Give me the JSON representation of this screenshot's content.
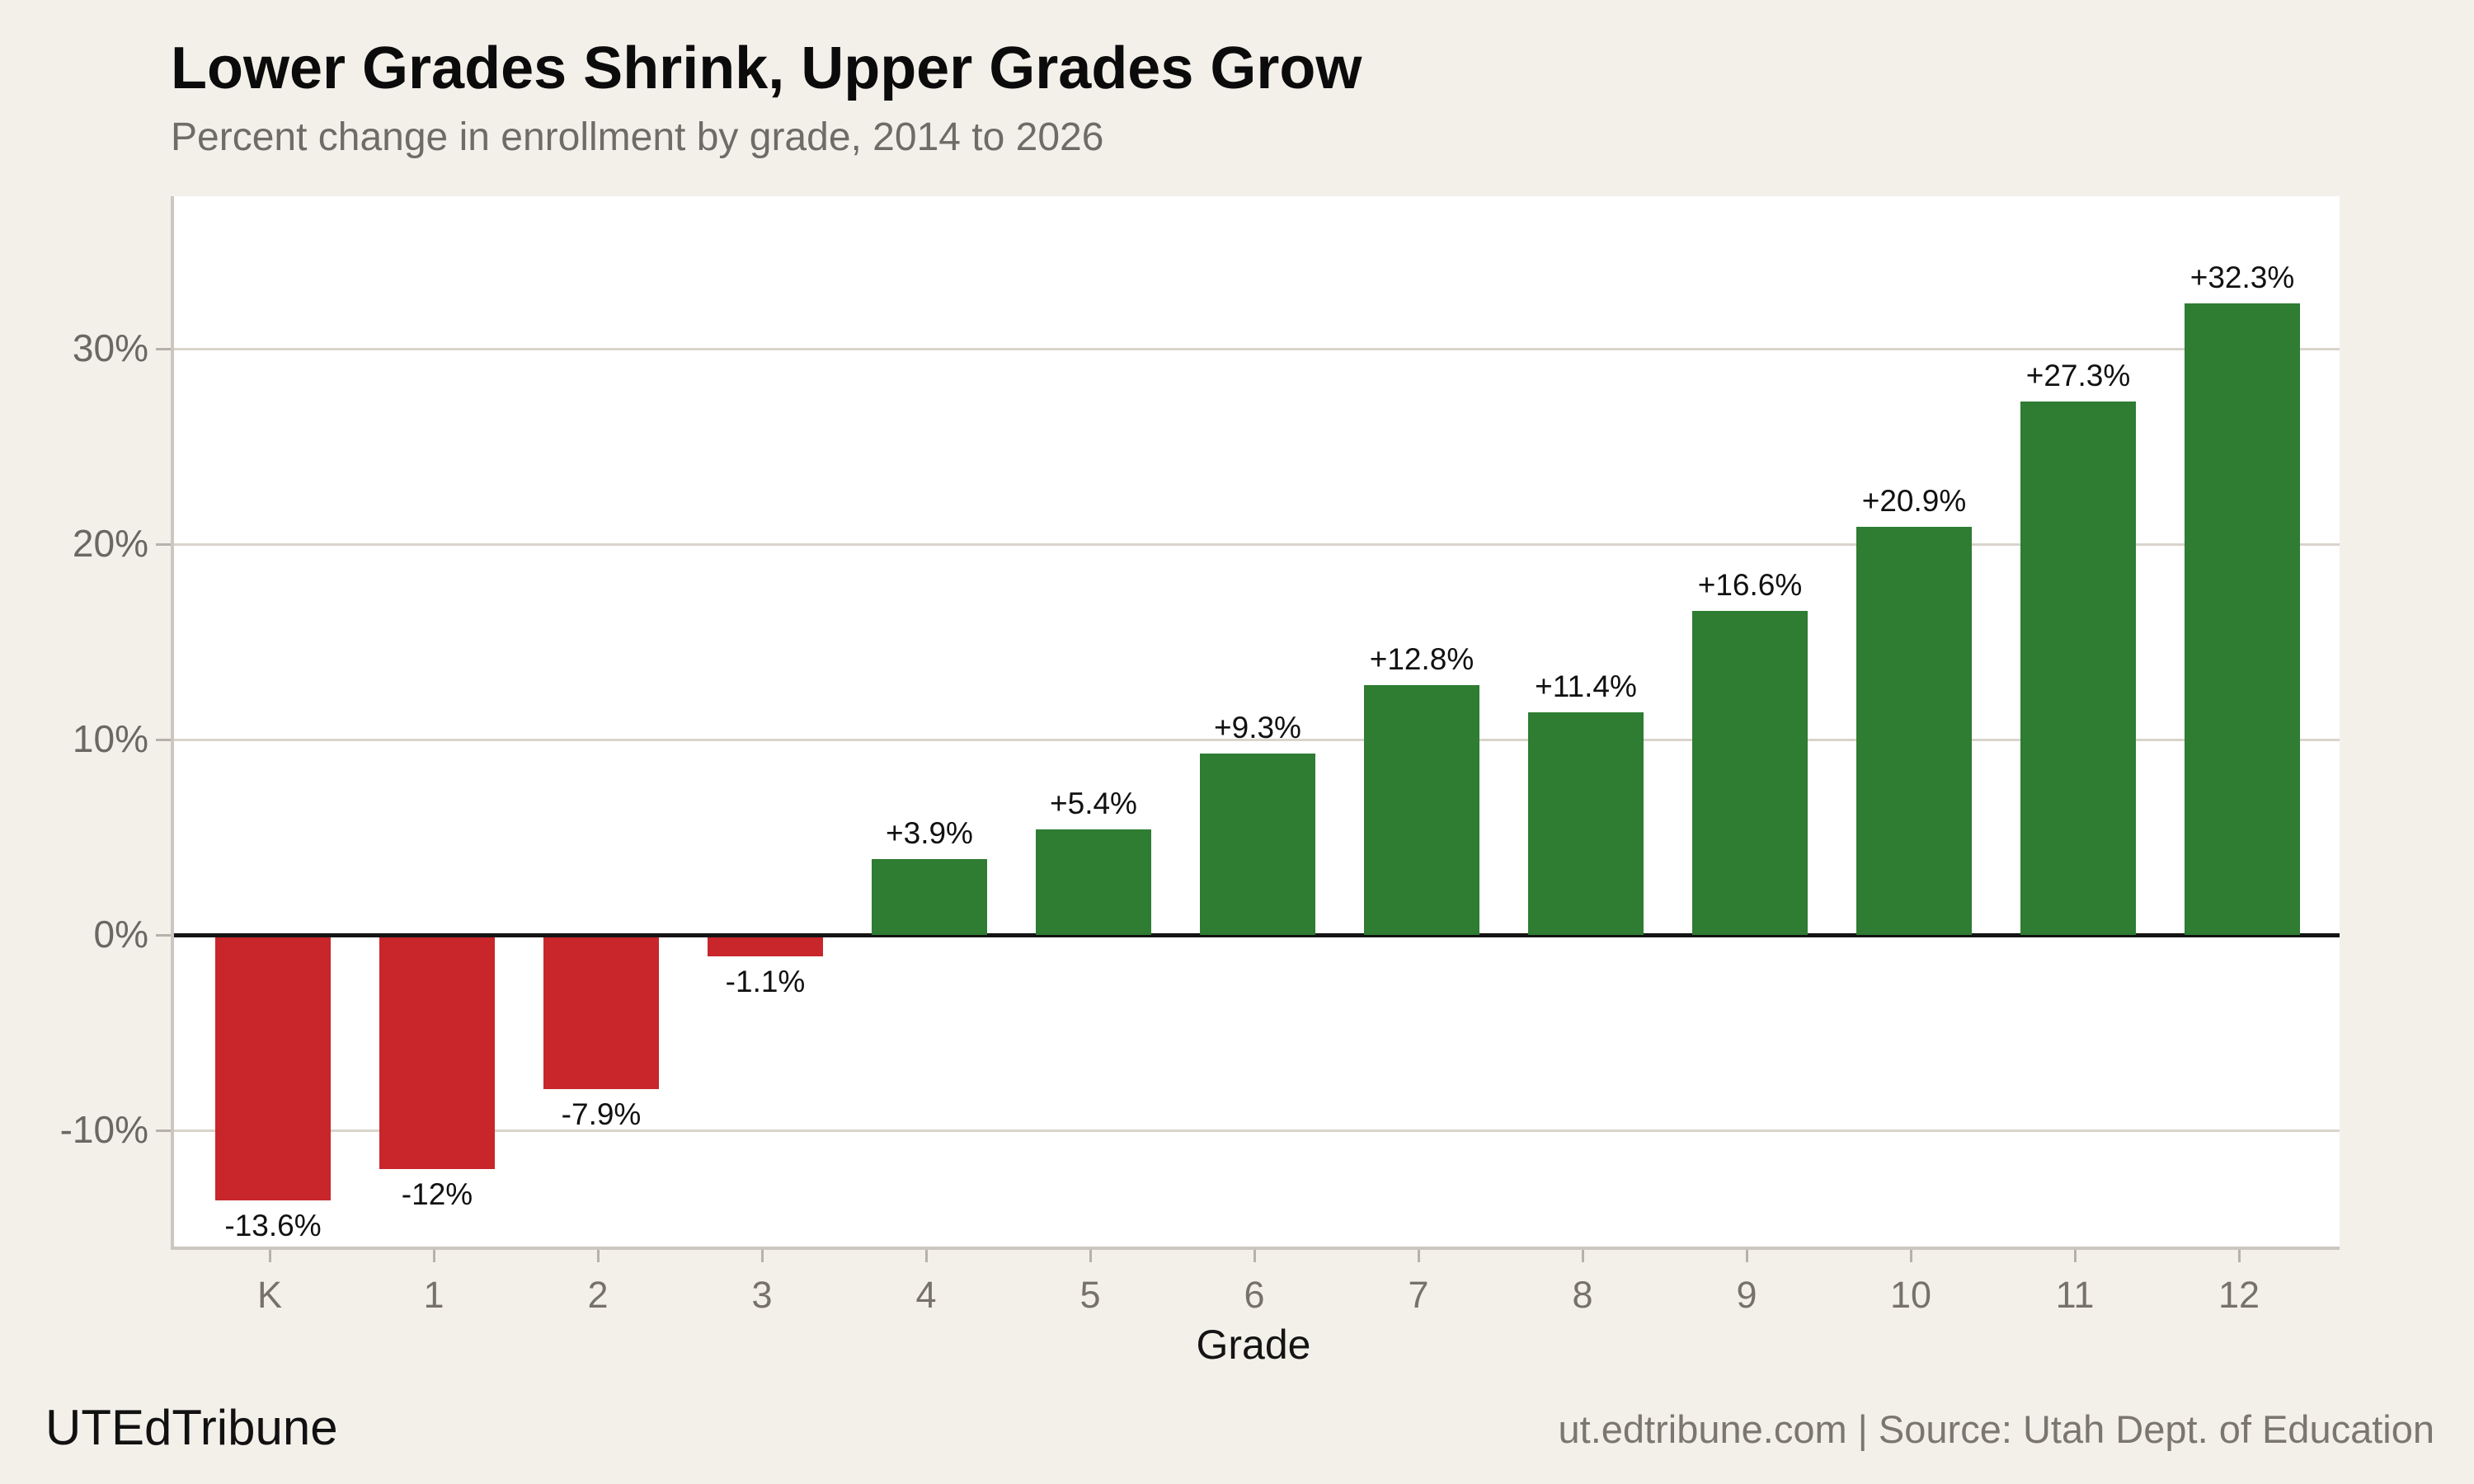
{
  "chart_data": {
    "type": "bar",
    "title": "Lower Grades Shrink, Upper Grades Grow",
    "subtitle": "Percent change in enrollment by grade, 2014 to 2026",
    "xlabel": "Grade",
    "ylabel": "",
    "categories": [
      "K",
      "1",
      "2",
      "3",
      "4",
      "5",
      "6",
      "7",
      "8",
      "9",
      "10",
      "11",
      "12"
    ],
    "values": [
      -13.6,
      -12,
      -7.9,
      -1.1,
      3.9,
      5.4,
      9.3,
      12.8,
      11.4,
      16.6,
      20.9,
      27.3,
      32.3
    ],
    "bar_labels": [
      "-13.6%",
      "-12%",
      "-7.9%",
      "-1.1%",
      "+3.9%",
      "+5.4%",
      "+9.3%",
      "+12.8%",
      "+11.4%",
      "+16.6%",
      "+20.9%",
      "+27.3%",
      "+32.3%"
    ],
    "ylim": [
      -15.95,
      37.8
    ],
    "yticks": [
      {
        "value": 30,
        "label": "30%"
      },
      {
        "value": 20,
        "label": "20%"
      },
      {
        "value": 10,
        "label": "10%"
      },
      {
        "value": 0,
        "label": "0%"
      },
      {
        "value": -10,
        "label": "-10%"
      }
    ],
    "gridline_values": [
      30,
      20,
      10,
      -10
    ],
    "grid": "horizontal",
    "legend": "none",
    "colors": {
      "positive_bar": "#2e7d32",
      "negative_bar": "#c8262b",
      "background": "#f3f0ea",
      "plot_background": "#ffffff",
      "gridline": "#d9d4cb",
      "axis_line": "#ccc7be",
      "zero_line": "#141414",
      "tick_mark": "#b7b2a9",
      "tick_text": "#6b6762",
      "value_label_text": "#111111"
    }
  },
  "footer": {
    "brand": "UTEdTribune",
    "source": "ut.edtribune.com | Source: Utah Dept. of Education"
  }
}
